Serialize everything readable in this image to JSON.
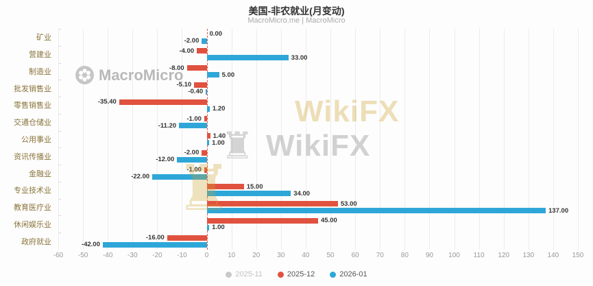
{
  "header": {
    "title": "美国-非农就业(月变动)",
    "subtitle": "MacroMicro.me | MacroMicro"
  },
  "watermarks": {
    "macromicro": "MacroMicro",
    "wikifx": "WikiFX"
  },
  "icons": {
    "stamp": "♜",
    "macromicro_logo": "flower-logo-icon"
  },
  "legend": {
    "items": [
      {
        "label": "2025-11",
        "color": "#c9c9c9",
        "active": false
      },
      {
        "label": "2025-12",
        "color": "#e0523f",
        "active": true
      },
      {
        "label": "2026-01",
        "color": "#2ea7d8",
        "active": true
      }
    ]
  },
  "chart_data": {
    "type": "bar",
    "orientation": "horizontal",
    "title": "美国-非农就业(月变动)",
    "source": "MacroMicro.me | MacroMicro",
    "categories": [
      "矿业",
      "营建业",
      "制造业",
      "批发销售业",
      "零售销售业",
      "交通仓储业",
      "公用事业",
      "资讯传播业",
      "金融业",
      "专业技术业",
      "教育医疗业",
      "休闲娱乐业",
      "政府就业"
    ],
    "series": [
      {
        "name": "2025-12",
        "color": "#e0523f",
        "values": [
          0.0,
          -4.0,
          -8.0,
          -5.1,
          -35.4,
          -1.0,
          1.4,
          -2.0,
          -1.0,
          15.0,
          53.0,
          45.0,
          -16.0
        ]
      },
      {
        "name": "2026-01",
        "color": "#2ea7d8",
        "values": [
          -2.0,
          33.0,
          5.0,
          -0.4,
          1.2,
          -11.2,
          1.0,
          -12.0,
          -22.0,
          34.0,
          137.0,
          1.0,
          -42.0
        ]
      }
    ],
    "hidden_series": [
      "2025-11"
    ],
    "xlim": [
      -60,
      150
    ],
    "x_ticks": [
      -60,
      -50,
      -40,
      -30,
      -20,
      -10,
      0,
      10,
      20,
      30,
      40,
      50,
      60,
      70,
      80,
      90,
      100,
      110,
      120,
      130,
      140,
      150
    ],
    "zero_line_style": "dashed",
    "zero_line_color": "#e0523f",
    "grid": true,
    "legend_position": "bottom",
    "value_labels": true,
    "value_label_format": "0.00"
  }
}
